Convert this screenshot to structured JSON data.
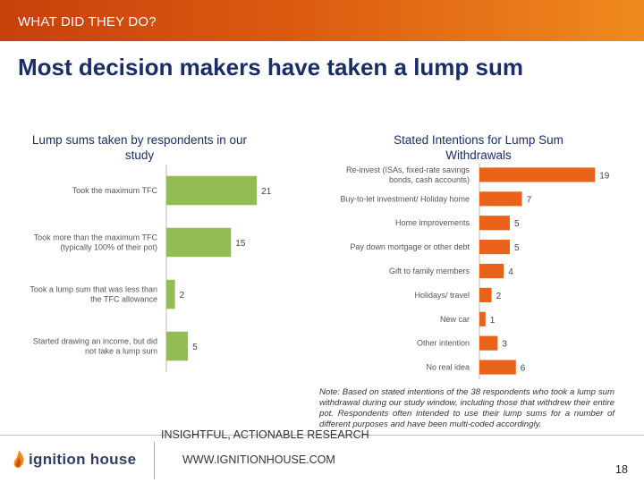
{
  "header": {
    "section_title": "WHAT DID THEY DO?"
  },
  "headline": "Most decision makers have taken a lump sum",
  "colors": {
    "left_bar": "#93bd54",
    "right_bar": "#e8621a",
    "header_start": "#c8400c",
    "header_end": "#f08a1e",
    "headline": "#1a2d6b"
  },
  "chart_data": [
    {
      "type": "bar",
      "orientation": "horizontal",
      "title": "Lump sums taken by respondents in our study",
      "categories": [
        "Took the maximum TFC",
        "Took more than the maximum TFC (typically 100% of their pot)",
        "Took a lump sum that was less than the TFC allowance",
        "Started drawing an income, but did not take a lump sum"
      ],
      "category_lines": [
        [
          "Took the maximum TFC"
        ],
        [
          "Took more than the maximum TFC",
          "(typically 100% of their pot)"
        ],
        [
          "Took a lump sum that was less than",
          "the TFC allowance"
        ],
        [
          "Started drawing an income, but did",
          "not take a lump sum"
        ]
      ],
      "values": [
        21,
        15,
        2,
        5
      ],
      "xlim": [
        0,
        22
      ]
    },
    {
      "type": "bar",
      "orientation": "horizontal",
      "title": "Stated Intentions for Lump Sum Withdrawals",
      "categories": [
        "Re-invest (ISAs, fixed-rate savings bonds, cash accounts)",
        "Buy-to-let investment/ Holiday home",
        "Home improvements",
        "Pay down mortgage or other debt",
        "Gift to family members",
        "Holidays/ travel",
        "New car",
        "Other intention",
        "No real idea"
      ],
      "category_lines": [
        [
          "Re-invest (ISAs, fixed-rate savings",
          "bonds, cash accounts)"
        ],
        [
          "Buy-to-let investment/ Holiday home"
        ],
        [
          "Home improvements"
        ],
        [
          "Pay down mortgage or other debt"
        ],
        [
          "Gift to family members"
        ],
        [
          "Holidays/ travel"
        ],
        [
          "New car"
        ],
        [
          "Other intention"
        ],
        [
          "No real idea"
        ]
      ],
      "values": [
        19,
        7,
        5,
        5,
        4,
        2,
        1,
        3,
        6
      ],
      "xlim": [
        0,
        20
      ]
    }
  ],
  "note": "Note: Based on stated intentions of the 38 respondents who took a lump sum withdrawal during our study window, including those that withdrew their entire pot. Respondents often intended to use their lump sums for a number of different purposes and have been multi-coded accordingly.",
  "footer": {
    "logo_text": "ignition house",
    "tagline": "INSIGHTFUL, ACTIONABLE RESEARCH",
    "website": "WWW.IGNITIONHOUSE.COM",
    "page_number": "18"
  }
}
